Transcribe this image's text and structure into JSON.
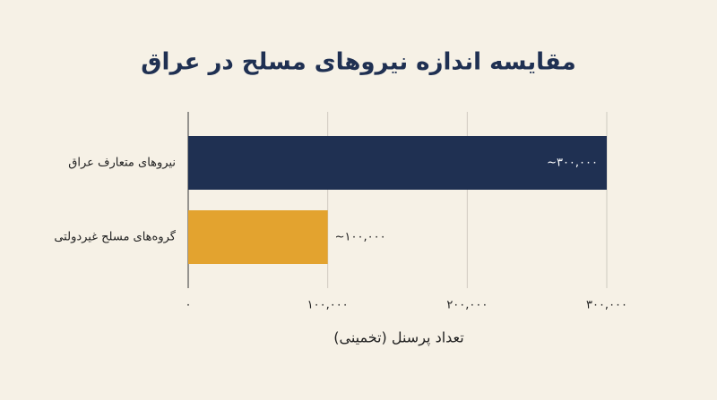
{
  "chart_data": {
    "type": "barh",
    "title": "مقایسه اندازه نیروهای مسلح در عراق",
    "xlabel": "تعداد پرسنل (تخمینی)",
    "categories": [
      "نیروهای متعارف عراق",
      "گروه‌های مسلح غیردولتی"
    ],
    "values": [
      300000,
      100000
    ],
    "value_labels": [
      "~۳۰۰,۰۰۰",
      "~۱۰۰,۰۰۰"
    ],
    "colors": [
      "#1f3052",
      "#e3a32f"
    ],
    "xlim": [
      0,
      300000
    ],
    "xticks": [
      {
        "value": 0,
        "label": "۰"
      },
      {
        "value": 100000,
        "label": "۱۰۰,۰۰۰"
      },
      {
        "value": 200000,
        "label": "۲۰۰,۰۰۰"
      },
      {
        "value": 300000,
        "label": "۳۰۰,۰۰۰"
      }
    ],
    "grid": true
  }
}
